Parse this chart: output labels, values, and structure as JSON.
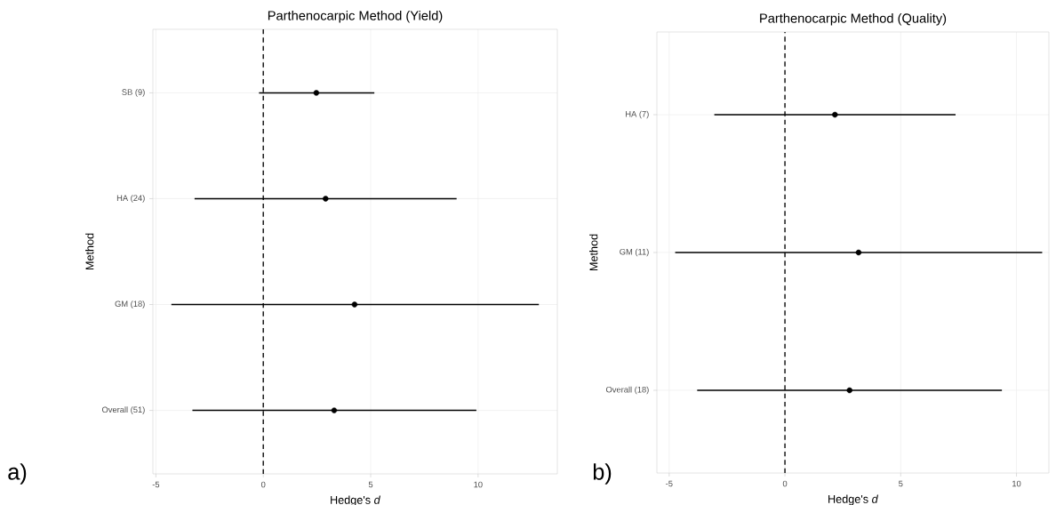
{
  "chart_data": [
    {
      "type": "scatter",
      "orientation": "horizontal",
      "title": "Parthenocarpic Method (Yield)",
      "xlabel": "Hedge's *d*",
      "ylabel": "Method",
      "categories": [
        "SB (9)",
        "HA (24)",
        "GM (18)",
        "Overall (51)"
      ],
      "series": [
        {
          "color": "#000000",
          "values": [
            2.47,
            2.9,
            4.25,
            3.3
          ],
          "errors": [
            [
              -0.2,
              5.17
            ],
            [
              -3.2,
              9.0
            ],
            [
              -4.28,
              12.83
            ],
            [
              -3.3,
              9.92
            ]
          ]
        }
      ],
      "marker": "circle",
      "xlim": [
        -5.14,
        13.69
      ],
      "xticks": [
        -5,
        0,
        5,
        10
      ],
      "grid": true,
      "ref_lines": [
        {
          "axis": "x",
          "value": 0,
          "color": "#000000",
          "line_style": "dashed"
        }
      ],
      "annotations": [
        "a)"
      ]
    },
    {
      "type": "scatter",
      "orientation": "horizontal",
      "title": "Parthenocarpic Method (Quality)",
      "xlabel": "Hedge's *d*",
      "ylabel": "Method",
      "categories": [
        "HA (7)",
        "GM (11)",
        "Overall (18)"
      ],
      "series": [
        {
          "color": "#000000",
          "values": [
            2.16,
            3.18,
            2.79
          ],
          "errors": [
            [
              -3.05,
              7.37
            ],
            [
              -4.74,
              11.11
            ],
            [
              -3.79,
              9.37
            ]
          ]
        }
      ],
      "marker": "circle",
      "xlim": [
        -5.53,
        11.4
      ],
      "xticks": [
        -5,
        0,
        5,
        10
      ],
      "grid": true,
      "ref_lines": [
        {
          "axis": "x",
          "value": 0,
          "color": "#000000",
          "line_style": "dashed"
        }
      ],
      "annotations": [
        "b)"
      ]
    }
  ]
}
